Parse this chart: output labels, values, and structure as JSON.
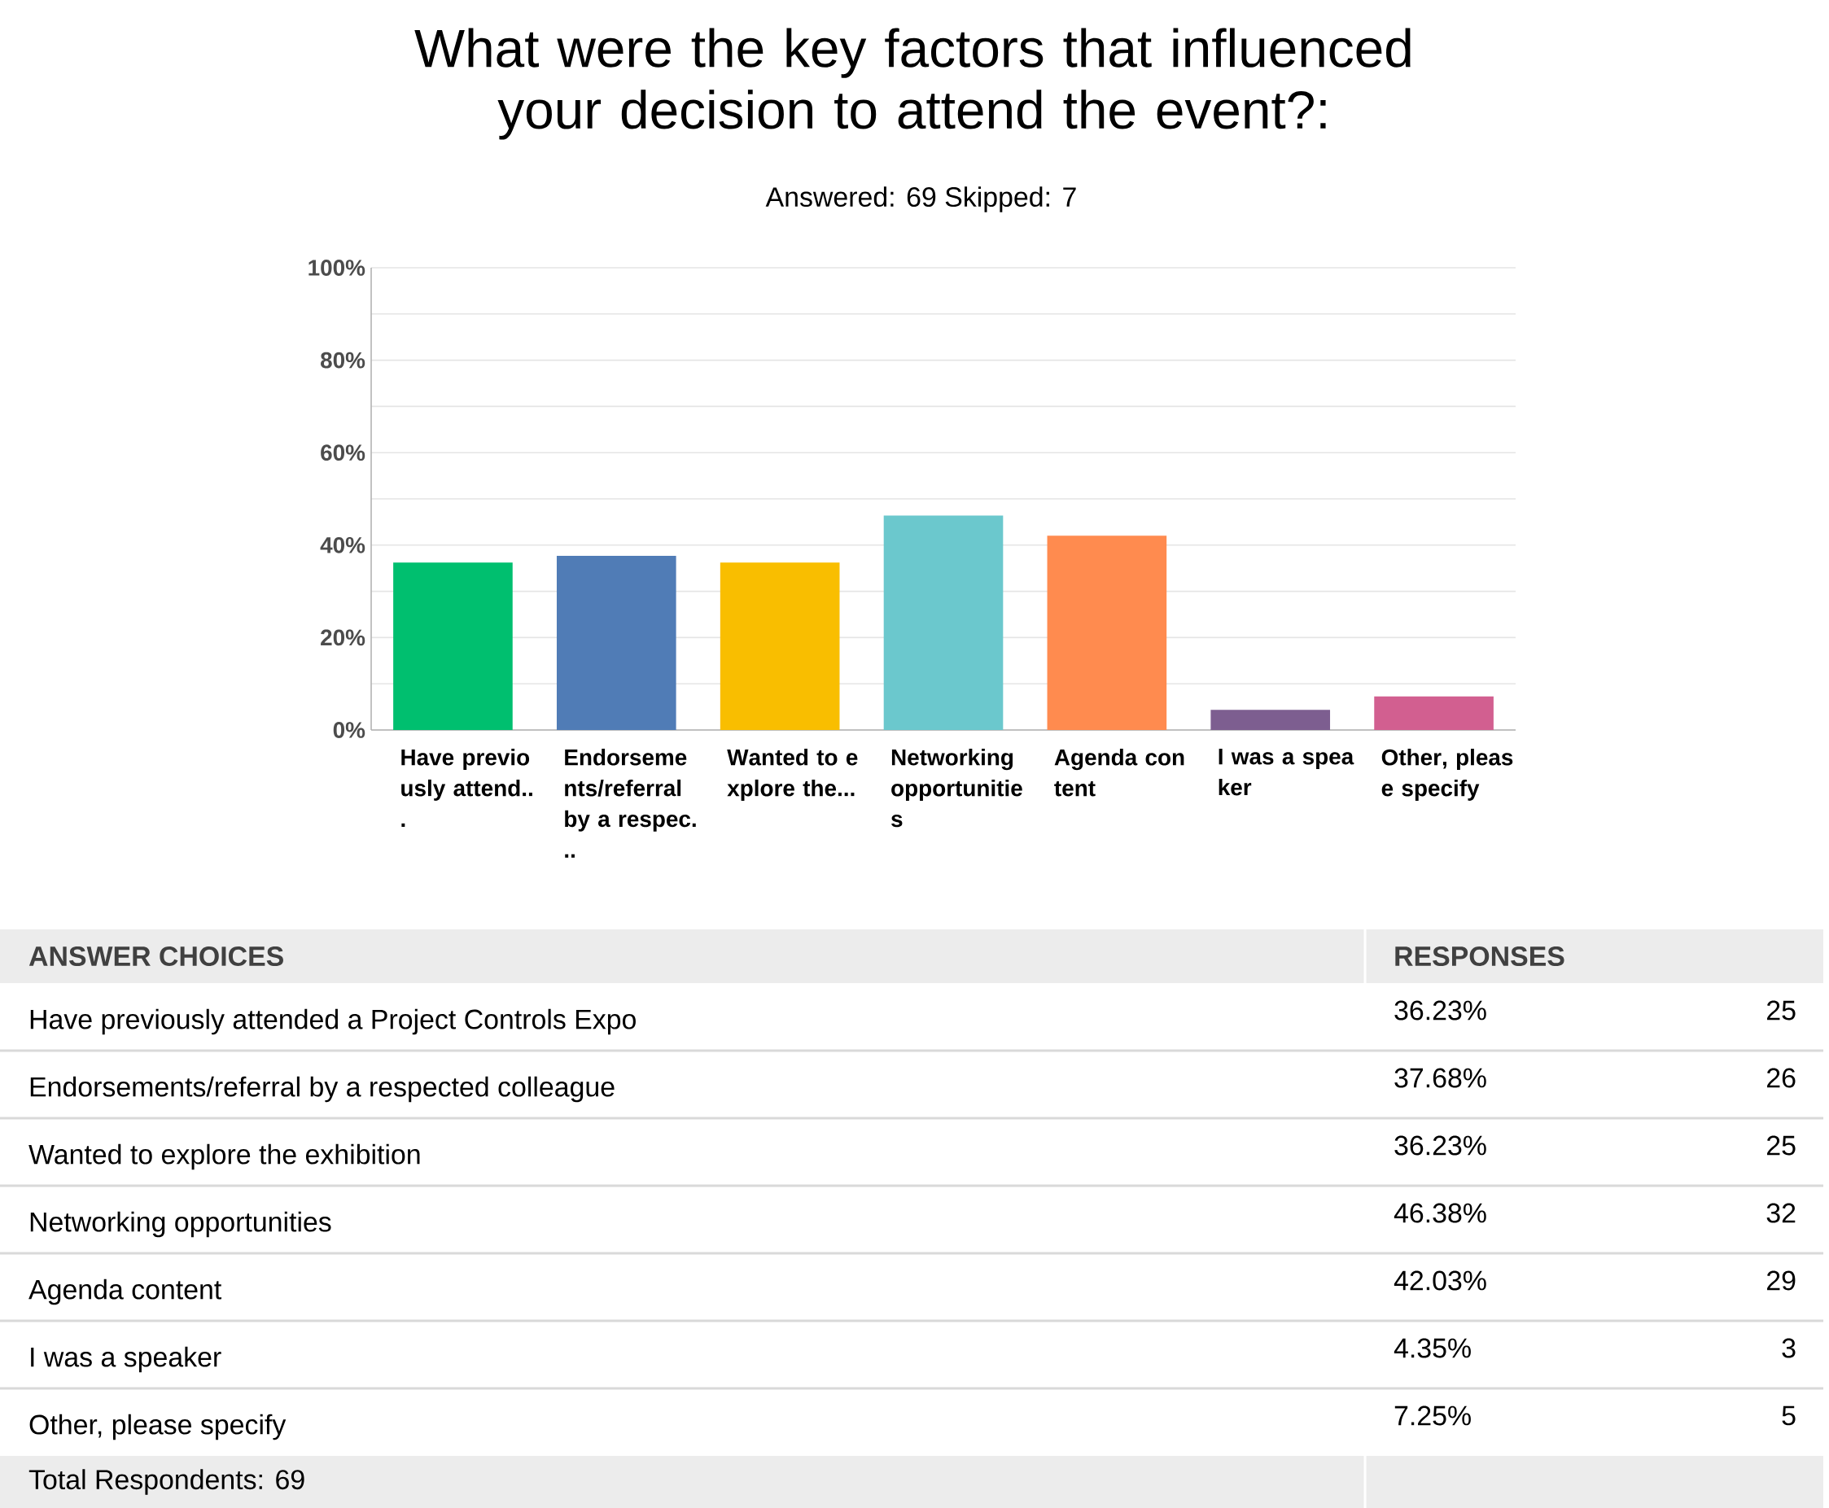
{
  "chart_data": {
    "type": "bar",
    "title": "What were the key factors that influenced your decision to attend the event?:",
    "subtitle": "Answered: 69      Skipped: 7",
    "categories": [
      "Have previously attend...",
      "Endorsements/referral by a respec...",
      "Wanted to explore the...",
      "Networking opportunities",
      "Agenda content",
      "I was a speaker",
      "Other, please specify"
    ],
    "values": [
      36.23,
      37.68,
      36.23,
      46.38,
      42.03,
      4.35,
      7.25
    ],
    "colors": [
      "#00bf6f",
      "#507cb6",
      "#f9be00",
      "#6bc8cd",
      "#ff8b4f",
      "#7d5e90",
      "#d25f90"
    ],
    "ylim": [
      0,
      100
    ],
    "yticks": [
      {
        "value": 0,
        "label": "0%"
      },
      {
        "value": 10,
        "label": null
      },
      {
        "value": 20,
        "label": "20%"
      },
      {
        "value": 30,
        "label": null
      },
      {
        "value": 40,
        "label": "40%"
      },
      {
        "value": 50,
        "label": null
      },
      {
        "value": 60,
        "label": "60%"
      },
      {
        "value": 70,
        "label": null
      },
      {
        "value": 80,
        "label": "80%"
      },
      {
        "value": 90,
        "label": null
      },
      {
        "value": 100,
        "label": "100%"
      }
    ],
    "grid": "y",
    "annotations": [
      "ANSWER CHOICES",
      "RESPONSES",
      "Have previously attended a Project Controls Expo",
      "Endorsements/referral by a respected colleague",
      "Wanted to explore the exhibition",
      "Networking opportunities",
      "Agenda content",
      "I was a speaker",
      "Other, please specify",
      "36.23%",
      "37.68%",
      "36.23%",
      "46.38%",
      "42.03%",
      "4.35%",
      "7.25%",
      "25",
      "26",
      "25",
      "32",
      "29",
      "3",
      "5",
      "Total Respondents: 69"
    ]
  }
}
